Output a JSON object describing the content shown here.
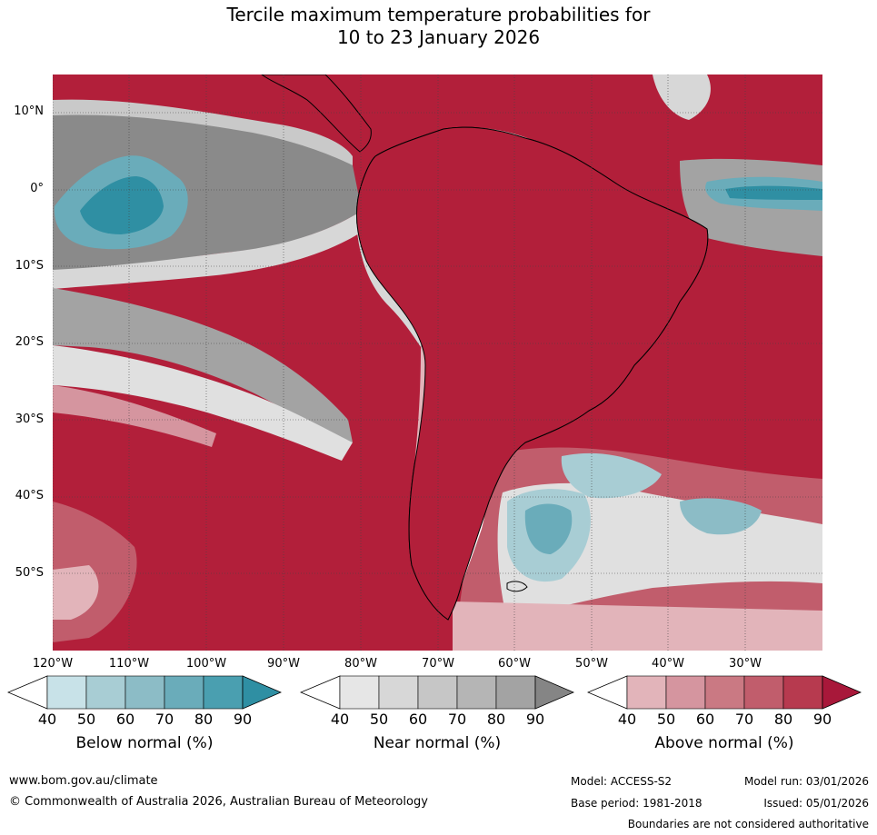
{
  "title": {
    "line1": "Tercile maximum temperature probabilities for",
    "line2": "10 to 23 January 2026"
  },
  "map": {
    "lat_labels": [
      "10°N",
      "0°",
      "10°S",
      "20°S",
      "30°S",
      "40°S",
      "50°S"
    ],
    "lon_labels": [
      "120°W",
      "110°W",
      "100°W",
      "90°W",
      "80°W",
      "70°W",
      "60°W",
      "50°W",
      "40°W",
      "30°W"
    ],
    "ocean_dominant_color": "#b21f3a",
    "land_outline_color": "#000000"
  },
  "legend": {
    "below": {
      "title": "Below normal (%)",
      "ticks": [
        "40",
        "50",
        "60",
        "70",
        "80",
        "90"
      ],
      "colors": [
        "#c8e2e8",
        "#a8cdd4",
        "#8cbcc6",
        "#6aacba",
        "#4a9fb0",
        "#2f8fa3"
      ]
    },
    "near": {
      "title": "Near normal (%)",
      "ticks": [
        "40",
        "50",
        "60",
        "70",
        "80",
        "90"
      ],
      "colors": [
        "#e6e6e6",
        "#d7d7d7",
        "#c6c6c6",
        "#b5b5b5",
        "#a3a3a3",
        "#858585"
      ]
    },
    "above": {
      "title": "Above normal (%)",
      "ticks": [
        "40",
        "50",
        "60",
        "70",
        "80",
        "90"
      ],
      "colors": [
        "#e2b4ba",
        "#d5959f",
        "#ca7983",
        "#c15d6c",
        "#b73a4f",
        "#a8183a"
      ]
    }
  },
  "footer": {
    "website": "www.bom.gov.au/climate",
    "copyright": "© Commonwealth of Australia 2026, Australian Bureau of Meteorology",
    "model": "Model: ACCESS-S2",
    "base_period": "Base period: 1981-2018",
    "model_run": "Model run: 03/01/2026",
    "issued": "Issued: 05/01/2026",
    "disclaimer": "Boundaries are not considered authoritative"
  }
}
